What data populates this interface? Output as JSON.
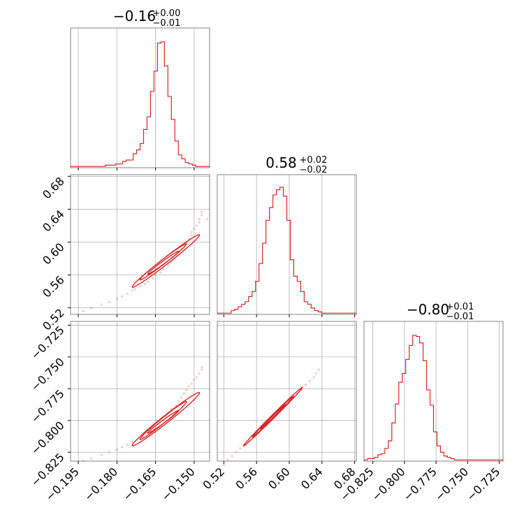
{
  "colors": {
    "accent": "#d62728",
    "grid": "#b0b0b0",
    "frame": "#808080"
  },
  "chart_data": {
    "type": "corner",
    "grid": true,
    "parameters": [
      {
        "title": {
          "median": "−0.16",
          "upper": "+0.00",
          "lower": "−0.01"
        },
        "range": [
          -0.198,
          -0.144
        ],
        "ticks": [
          -0.195,
          -0.18,
          -0.165,
          -0.15
        ],
        "tick_labels": [
          "−0.195",
          "−0.180",
          "−0.165",
          "−0.150"
        ],
        "histogram": [
          0.01,
          0.01,
          0.01,
          0.01,
          0.01,
          0.01,
          0.01,
          0.01,
          0.01,
          0.01,
          0.02,
          0.02,
          0.02,
          0.03,
          0.03,
          0.05,
          0.06,
          0.06,
          0.11,
          0.14,
          0.19,
          0.3,
          0.4,
          0.6,
          0.76,
          0.98,
          0.99,
          0.8,
          0.56,
          0.38,
          0.21,
          0.1,
          0.07,
          0.04,
          0.03,
          0.02,
          0.01,
          0.01,
          0.01,
          0.01
        ]
      },
      {
        "title": {
          "median": "0.58",
          "upper": "+0.02",
          "lower": "−0.02"
        },
        "range": [
          0.512,
          0.682
        ],
        "ticks": [
          0.52,
          0.56,
          0.6,
          0.64,
          0.68
        ],
        "tick_labels": [
          "0.52",
          "0.56",
          "0.60",
          "0.64",
          "0.68"
        ],
        "histogram": [
          0.01,
          0.01,
          0.01,
          0.01,
          0.03,
          0.04,
          0.06,
          0.08,
          0.1,
          0.14,
          0.18,
          0.26,
          0.4,
          0.56,
          0.74,
          0.84,
          0.94,
          0.98,
          1.0,
          0.93,
          0.74,
          0.43,
          0.3,
          0.26,
          0.18,
          0.1,
          0.08,
          0.05,
          0.03,
          0.02,
          0.01,
          0.01,
          0.01,
          0.01,
          0.01,
          0.01,
          0.01,
          0.01,
          0.01,
          0.01
        ]
      },
      {
        "title": {
          "median": "−0.80",
          "upper": "+0.01",
          "lower": "−0.01"
        },
        "range": [
          -0.832,
          -0.722
        ],
        "ticks": [
          -0.825,
          -0.8,
          -0.775,
          -0.75,
          -0.725
        ],
        "tick_labels": [
          "−0.825",
          "−0.800",
          "−0.775",
          "−0.750",
          "−0.725"
        ],
        "histogram": [
          0.01,
          0.02,
          0.02,
          0.03,
          0.05,
          0.06,
          0.1,
          0.16,
          0.3,
          0.45,
          0.62,
          0.69,
          0.8,
          0.91,
          0.99,
          0.98,
          0.93,
          0.79,
          0.56,
          0.44,
          0.23,
          0.12,
          0.07,
          0.04,
          0.03,
          0.02,
          0.01,
          0.01,
          0.01,
          0.01,
          0.01,
          0.01,
          0.01,
          0.01,
          0.01,
          0.01,
          0.01,
          0.01,
          0.01,
          0.01
        ]
      }
    ],
    "pairs": [
      {
        "x_param": 0,
        "y_param": 1,
        "points": [
          [
            -0.193,
            0.516
          ],
          [
            -0.19,
            0.52
          ],
          [
            -0.186,
            0.524
          ],
          [
            -0.183,
            0.527
          ],
          [
            -0.18,
            0.531
          ],
          [
            -0.178,
            0.534
          ],
          [
            -0.176,
            0.537
          ],
          [
            -0.174,
            0.541
          ],
          [
            -0.173,
            0.543
          ],
          [
            -0.171,
            0.546
          ],
          [
            -0.169,
            0.549
          ],
          [
            -0.168,
            0.552
          ],
          [
            -0.166,
            0.556
          ],
          [
            -0.165,
            0.56
          ],
          [
            -0.163,
            0.563
          ],
          [
            -0.162,
            0.567
          ],
          [
            -0.16,
            0.572
          ],
          [
            -0.159,
            0.576
          ],
          [
            -0.158,
            0.58
          ],
          [
            -0.157,
            0.584
          ],
          [
            -0.156,
            0.588
          ],
          [
            -0.155,
            0.592
          ],
          [
            -0.154,
            0.596
          ],
          [
            -0.153,
            0.6
          ],
          [
            -0.152,
            0.604
          ],
          [
            -0.151,
            0.608
          ],
          [
            -0.151,
            0.612
          ],
          [
            -0.15,
            0.616
          ],
          [
            -0.149,
            0.62
          ],
          [
            -0.148,
            0.624
          ],
          [
            -0.148,
            0.628
          ],
          [
            -0.147,
            0.633
          ],
          [
            -0.147,
            0.637
          ],
          [
            -0.145,
            0.628
          ]
        ],
        "contours": [
          {
            "center": [
              -0.161,
              0.577
            ],
            "axis_a": [
              0.013,
              0.032
            ],
            "axis_b": [
              0.0016,
              -0.0011
            ]
          },
          {
            "center": [
              -0.162,
              0.576
            ],
            "axis_a": [
              0.009,
              0.022
            ],
            "axis_b": [
              0.0011,
              -0.0008
            ]
          },
          {
            "center": [
              -0.162,
              0.575
            ],
            "axis_a": [
              0.006,
              0.014
            ],
            "axis_b": [
              0.0007,
              -0.0005
            ]
          }
        ]
      },
      {
        "x_param": 0,
        "y_param": 2,
        "points": [
          [
            -0.193,
            -0.832
          ],
          [
            -0.19,
            -0.83
          ],
          [
            -0.186,
            -0.827
          ],
          [
            -0.183,
            -0.825
          ],
          [
            -0.18,
            -0.823
          ],
          [
            -0.178,
            -0.821
          ],
          [
            -0.176,
            -0.819
          ],
          [
            -0.174,
            -0.817
          ],
          [
            -0.172,
            -0.815
          ],
          [
            -0.17,
            -0.813
          ],
          [
            -0.168,
            -0.81
          ],
          [
            -0.167,
            -0.808
          ],
          [
            -0.165,
            -0.805
          ],
          [
            -0.164,
            -0.803
          ],
          [
            -0.162,
            -0.8
          ],
          [
            -0.161,
            -0.797
          ],
          [
            -0.16,
            -0.794
          ],
          [
            -0.159,
            -0.791
          ],
          [
            -0.157,
            -0.788
          ],
          [
            -0.156,
            -0.785
          ],
          [
            -0.155,
            -0.782
          ],
          [
            -0.154,
            -0.779
          ],
          [
            -0.153,
            -0.776
          ],
          [
            -0.152,
            -0.773
          ],
          [
            -0.151,
            -0.771
          ],
          [
            -0.15,
            -0.768
          ],
          [
            -0.149,
            -0.766
          ],
          [
            -0.148,
            -0.763
          ],
          [
            -0.147,
            -0.758
          ],
          [
            -0.147,
            -0.76
          ]
        ],
        "contours": [
          {
            "center": [
              -0.161,
              -0.799
            ],
            "axis_a": [
              0.013,
              0.021
            ],
            "axis_b": [
              0.0016,
              -0.001
            ]
          },
          {
            "center": [
              -0.162,
              -0.8
            ],
            "axis_a": [
              0.009,
              0.015
            ],
            "axis_b": [
              0.0011,
              -0.0007
            ]
          },
          {
            "center": [
              -0.162,
              -0.801
            ],
            "axis_a": [
              0.006,
              0.009
            ],
            "axis_b": [
              0.0007,
              -0.0004
            ]
          }
        ]
      },
      {
        "x_param": 1,
        "y_param": 2,
        "points": [
          [
            0.52,
            -0.835
          ],
          [
            0.525,
            -0.831
          ],
          [
            0.53,
            -0.828
          ],
          [
            0.535,
            -0.825
          ],
          [
            0.54,
            -0.822
          ],
          [
            0.545,
            -0.819
          ],
          [
            0.55,
            -0.816
          ],
          [
            0.555,
            -0.812
          ],
          [
            0.56,
            -0.809
          ],
          [
            0.565,
            -0.806
          ],
          [
            0.57,
            -0.803
          ],
          [
            0.575,
            -0.8
          ],
          [
            0.58,
            -0.797
          ],
          [
            0.585,
            -0.794
          ],
          [
            0.59,
            -0.791
          ],
          [
            0.595,
            -0.788
          ],
          [
            0.6,
            -0.785
          ],
          [
            0.605,
            -0.782
          ],
          [
            0.61,
            -0.779
          ],
          [
            0.615,
            -0.776
          ],
          [
            0.62,
            -0.772
          ],
          [
            0.625,
            -0.769
          ],
          [
            0.63,
            -0.766
          ],
          [
            0.633,
            -0.763
          ],
          [
            0.636,
            -0.76
          ]
        ],
        "contours": [
          {
            "center": [
              0.58,
              -0.797
            ],
            "axis_a": [
              0.036,
              0.023
            ],
            "axis_b": [
              0.0008,
              -0.0013
            ]
          },
          {
            "center": [
              0.58,
              -0.797
            ],
            "axis_a": [
              0.025,
              0.016
            ],
            "axis_b": [
              0.0005,
              -0.0009
            ]
          },
          {
            "center": [
              0.58,
              -0.797
            ],
            "axis_a": [
              0.015,
              0.0095
            ],
            "axis_b": [
              0.0003,
              -0.0005
            ]
          }
        ]
      }
    ]
  }
}
